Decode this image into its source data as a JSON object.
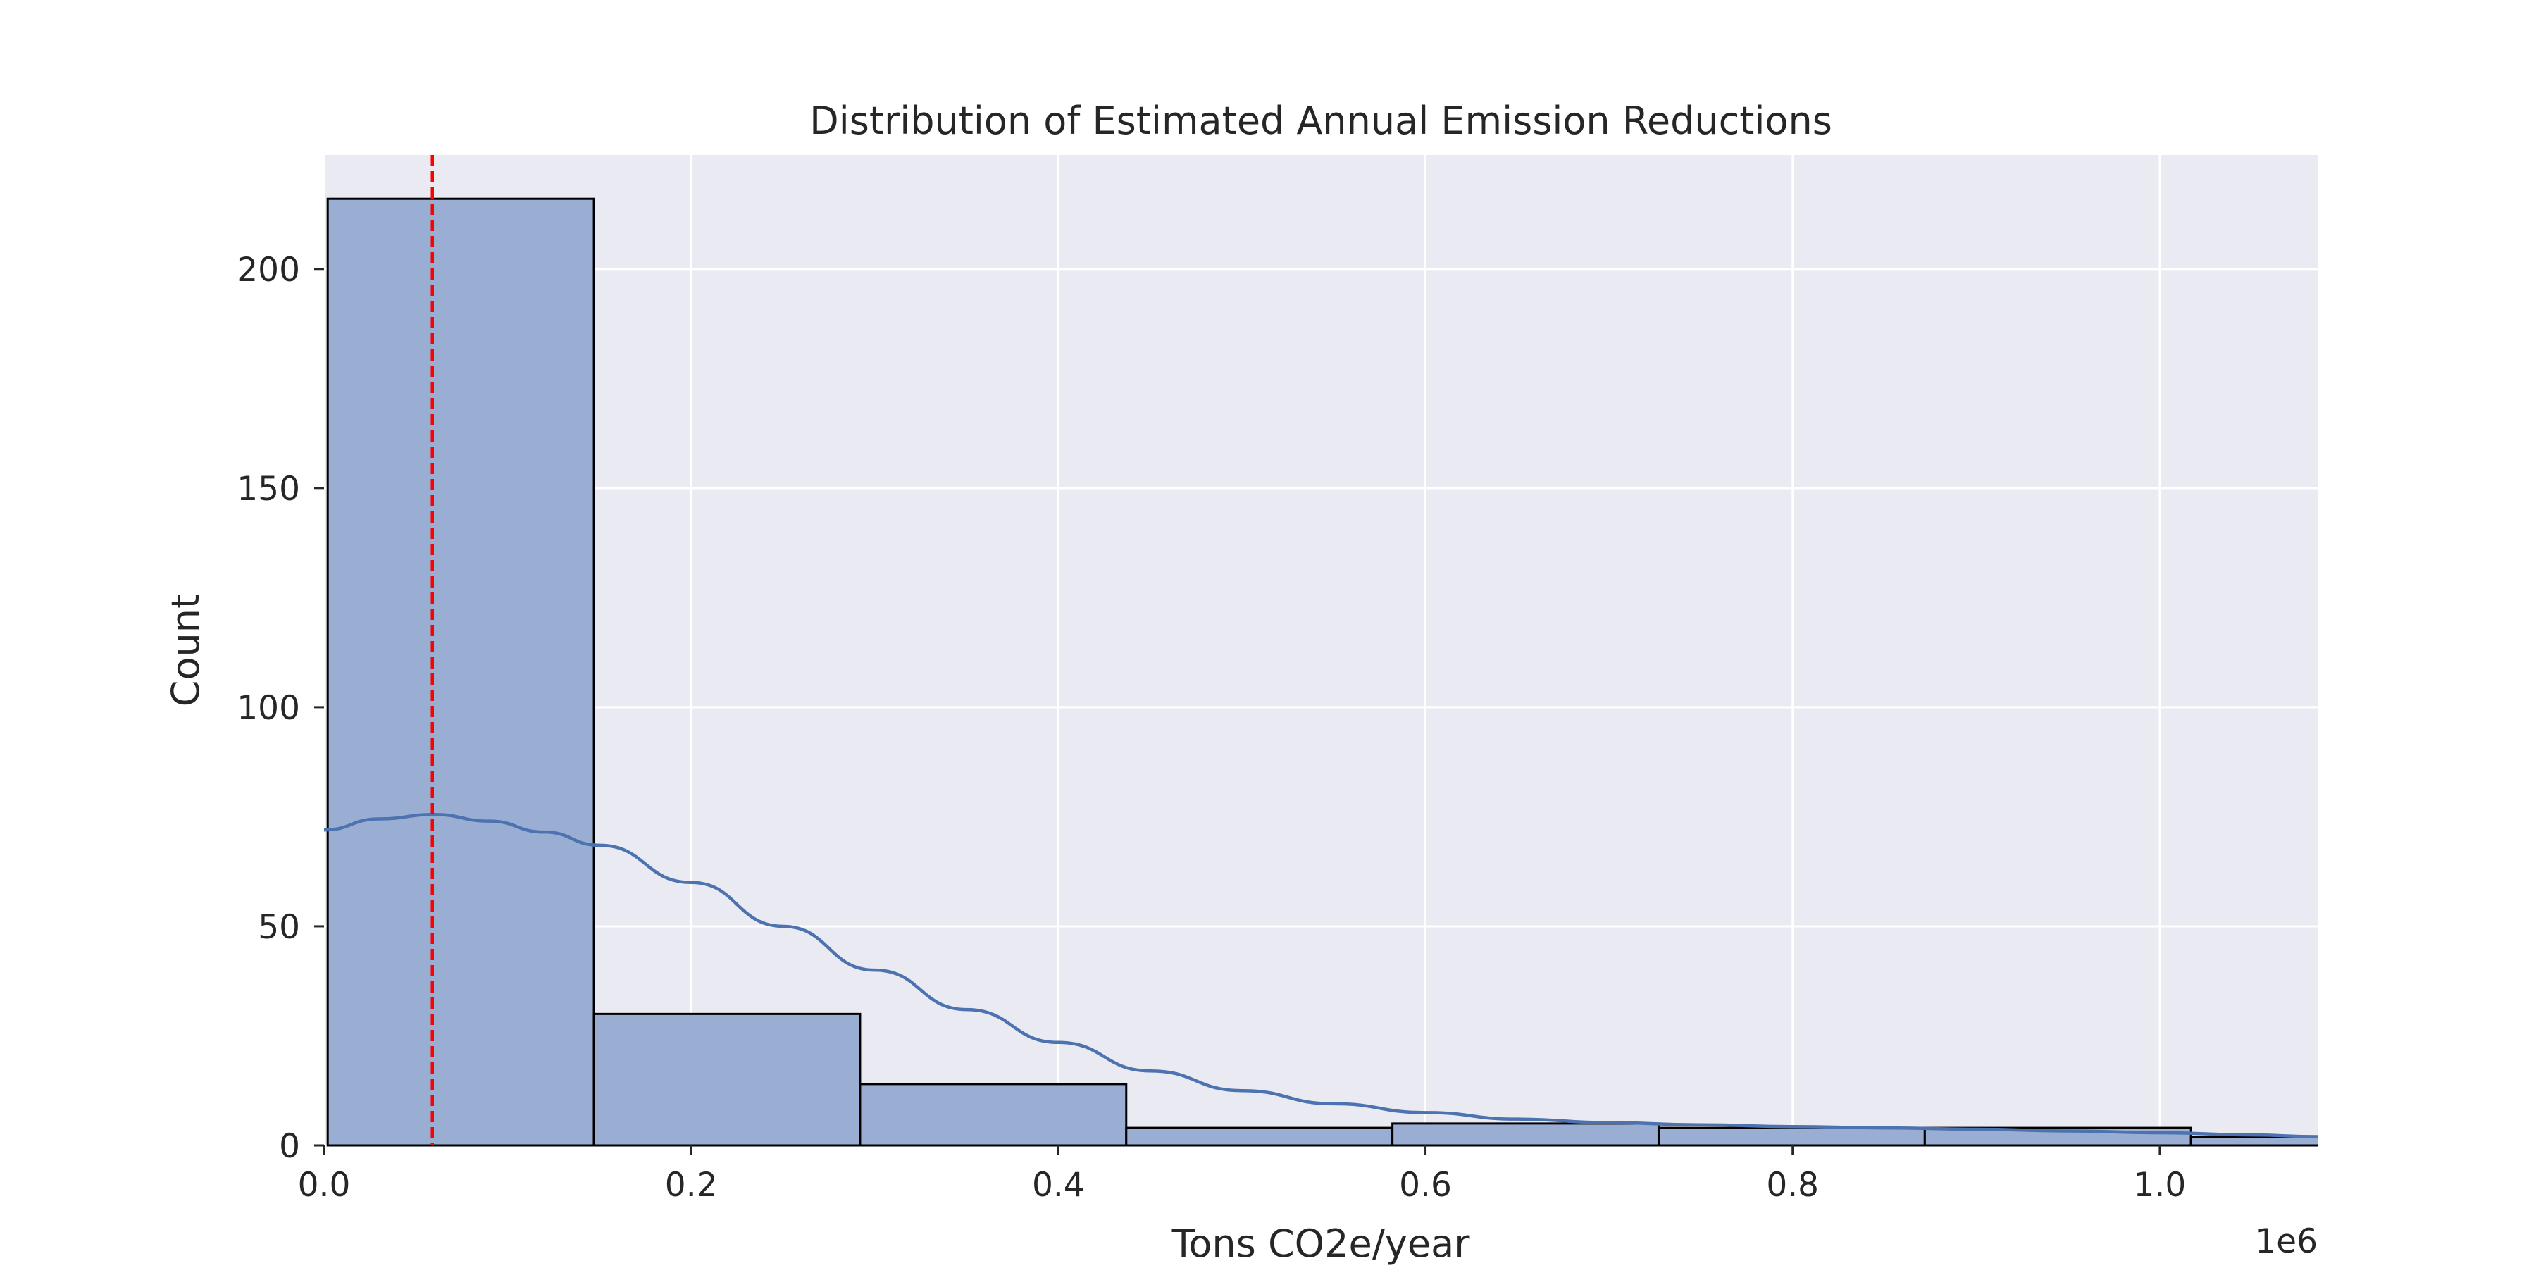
{
  "chart_data": {
    "type": "bar",
    "title": "Distribution of Estimated Annual Emission Reductions",
    "xlabel": "Tons CO2e/year",
    "ylabel": "Count",
    "x_offset_label": "1e6",
    "x_scale_multiplier": 1000000,
    "xlim": [
      0,
      1086000
    ],
    "ylim": [
      0,
      226
    ],
    "x_ticks": [
      {
        "value": 0,
        "label": "0.0"
      },
      {
        "value": 200000,
        "label": "0.2"
      },
      {
        "value": 400000,
        "label": "0.4"
      },
      {
        "value": 600000,
        "label": "0.6"
      },
      {
        "value": 800000,
        "label": "0.8"
      },
      {
        "value": 1000000,
        "label": "1.0"
      }
    ],
    "y_ticks": [
      {
        "value": 0,
        "label": "0"
      },
      {
        "value": 50,
        "label": "50"
      },
      {
        "value": 100,
        "label": "100"
      },
      {
        "value": 150,
        "label": "150"
      },
      {
        "value": 200,
        "label": "200"
      }
    ],
    "grid": true,
    "bins": [
      {
        "x0": 2000,
        "x1": 147000,
        "count": 216
      },
      {
        "x0": 147000,
        "x1": 292000,
        "count": 30
      },
      {
        "x0": 292000,
        "x1": 437000,
        "count": 14
      },
      {
        "x0": 437000,
        "x1": 582000,
        "count": 4
      },
      {
        "x0": 582000,
        "x1": 727000,
        "count": 5
      },
      {
        "x0": 727000,
        "x1": 872000,
        "count": 4
      },
      {
        "x0": 872000,
        "x1": 1017000,
        "count": 4
      },
      {
        "x0": 1017000,
        "x1": 1162000,
        "count": 2
      }
    ],
    "kde": {
      "x": [
        0,
        30000,
        60000,
        90000,
        120000,
        150000,
        200000,
        250000,
        300000,
        350000,
        400000,
        450000,
        500000,
        550000,
        600000,
        650000,
        700000,
        750000,
        800000,
        850000,
        900000,
        950000,
        1000000,
        1050000,
        1086000
      ],
      "y": [
        72,
        74.5,
        75.5,
        74,
        71.5,
        68.5,
        60,
        50,
        40,
        31,
        23.5,
        17,
        12.5,
        9.5,
        7.5,
        6,
        5.2,
        4.7,
        4.3,
        4,
        3.7,
        3.3,
        2.9,
        2.4,
        2
      ]
    },
    "reference_line": {
      "x": 59000,
      "style": "dashed"
    },
    "colors": {
      "background": "#eaeaf2",
      "grid": "#ffffff",
      "bar_fill": "#99aed2",
      "bar_edge": "#000000",
      "kde_line": "#4c72b0",
      "reference_line": "#ff0000"
    }
  }
}
